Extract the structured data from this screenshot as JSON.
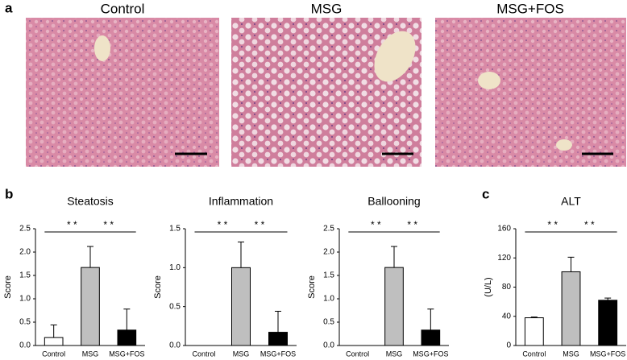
{
  "panel_labels": [
    "a",
    "b",
    "c"
  ],
  "images": {
    "titles": [
      "Control",
      "MSG",
      "MSG+FOS"
    ]
  },
  "chart_data": [
    {
      "type": "bar",
      "title": "Steatosis",
      "ylabel": "Score",
      "categories": [
        "Control",
        "MSG",
        "MSG+FOS"
      ],
      "values": [
        0.17,
        1.67,
        0.33
      ],
      "errors": [
        0.27,
        0.45,
        0.45
      ],
      "colors": [
        "#ffffff",
        "#bfbfbf",
        "#000000"
      ],
      "ylim": [
        0,
        2.5
      ],
      "yticks": [
        {
          "value": 0,
          "label": "0.0"
        },
        0.5,
        {
          "value": 1,
          "label": "1.0"
        },
        1.5,
        {
          "value": 2,
          "label": "2.0"
        },
        2.5
      ],
      "significance": [
        "* *",
        "* *"
      ]
    },
    {
      "type": "bar",
      "title": "Inflammation",
      "ylabel": "Score",
      "categories": [
        "Control",
        "MSG",
        "MSG+FOS"
      ],
      "values": [
        0,
        1.0,
        0.17
      ],
      "errors": [
        0,
        0.33,
        0.27
      ],
      "colors": [
        "#ffffff",
        "#bfbfbf",
        "#000000"
      ],
      "ylim": [
        0,
        1.5
      ],
      "yticks": [
        {
          "value": 0,
          "label": "0.0"
        },
        0.5,
        {
          "value": 1,
          "label": "1.0"
        },
        1.5
      ],
      "significance": [
        "* *",
        "* *"
      ]
    },
    {
      "type": "bar",
      "title": "Ballooning",
      "ylabel": "Score",
      "categories": [
        "Control",
        "MSG",
        "MSG+FOS"
      ],
      "values": [
        0,
        1.67,
        0.33
      ],
      "errors": [
        0,
        0.45,
        0.45
      ],
      "colors": [
        "#ffffff",
        "#bfbfbf",
        "#000000"
      ],
      "ylim": [
        0,
        2.5
      ],
      "yticks": [
        {
          "value": 0,
          "label": "0.0"
        },
        0.5,
        {
          "value": 1,
          "label": "1.0"
        },
        1.5,
        {
          "value": 2,
          "label": "2.0"
        },
        2.5
      ],
      "significance": [
        "* *",
        "* *"
      ]
    },
    {
      "type": "bar",
      "title": "ALT",
      "ylabel": "(U/L)",
      "categories": [
        "Control",
        "MSG",
        "MSG+FOS"
      ],
      "values": [
        38,
        101,
        62
      ],
      "errors": [
        1,
        20,
        3
      ],
      "colors": [
        "#ffffff",
        "#bfbfbf",
        "#000000"
      ],
      "ylim": [
        0,
        160
      ],
      "yticks": [
        0,
        40,
        80,
        120,
        160
      ],
      "significance": [
        "* *",
        "* *"
      ]
    }
  ]
}
